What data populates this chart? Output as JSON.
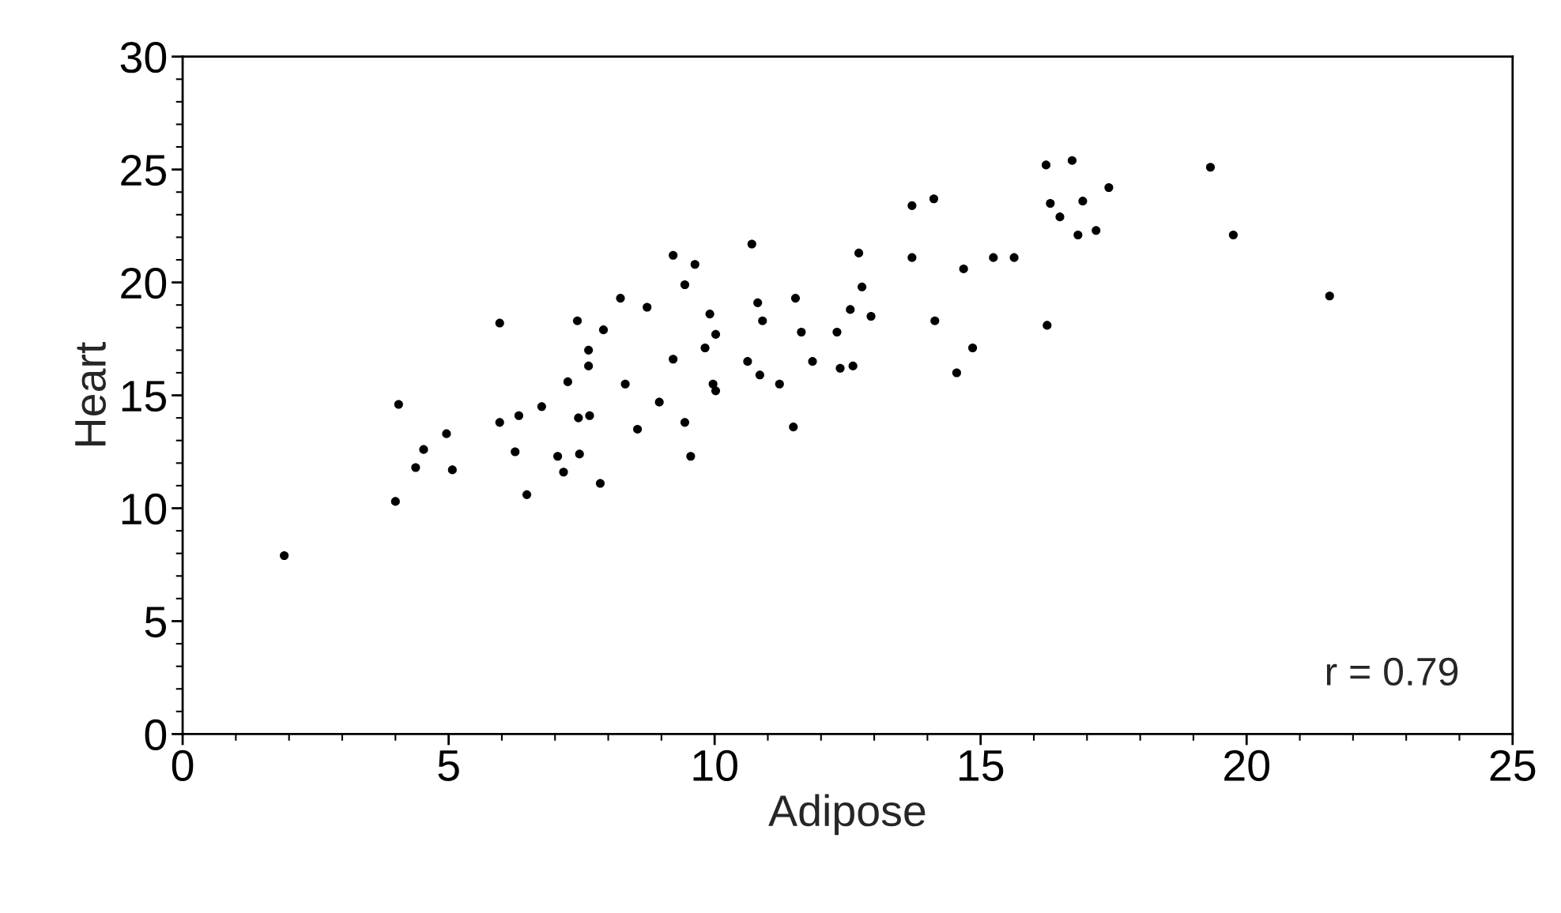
{
  "chart_data": {
    "type": "scatter",
    "xlabel": "Adipose",
    "ylabel": "Heart",
    "xlim": [
      0,
      25
    ],
    "xticks": [
      0,
      5,
      10,
      15,
      20,
      25
    ],
    "ylim": [
      0,
      30
    ],
    "yticks": [
      0,
      5,
      10,
      15,
      20,
      25,
      30
    ],
    "grid": false,
    "marker": "circle",
    "annotations": [
      "r = 0.79"
    ],
    "series": [
      {
        "color": "#000000",
        "x": [
          1.91,
          4.0,
          4.06,
          4.38,
          4.53,
          4.96,
          5.07,
          5.96,
          5.96,
          6.25,
          6.32,
          6.47,
          6.75,
          7.05,
          7.16,
          7.24,
          7.42,
          7.44,
          7.46,
          7.63,
          7.63,
          7.65,
          7.85,
          7.91,
          8.23,
          8.32,
          8.55,
          8.73,
          8.96,
          9.22,
          9.22,
          9.44,
          9.44,
          9.55,
          9.63,
          9.82,
          9.91,
          9.97,
          10.02,
          10.02,
          10.62,
          10.7,
          10.81,
          10.85,
          10.9,
          11.22,
          11.48,
          11.52,
          11.63,
          11.84,
          12.3,
          12.36,
          12.55,
          12.6,
          12.71,
          12.77,
          12.94,
          13.71,
          13.71,
          14.12,
          14.14,
          14.55,
          14.68,
          14.85,
          15.24,
          15.63,
          16.23,
          16.25,
          16.31,
          16.49,
          16.72,
          16.83,
          16.92,
          17.17,
          17.41,
          19.32,
          19.75,
          21.56
        ],
        "values": [
          7.9,
          10.3,
          14.6,
          11.8,
          12.6,
          13.3,
          11.7,
          18.2,
          13.8,
          12.5,
          14.1,
          10.6,
          14.5,
          12.3,
          11.6,
          15.6,
          18.3,
          14.0,
          12.4,
          17.0,
          16.3,
          14.1,
          11.1,
          17.9,
          19.3,
          15.5,
          13.5,
          18.9,
          14.7,
          21.2,
          16.6,
          19.9,
          13.8,
          12.3,
          20.8,
          17.1,
          18.6,
          15.5,
          17.7,
          15.2,
          16.5,
          21.7,
          19.1,
          15.9,
          18.3,
          15.5,
          13.6,
          19.3,
          17.8,
          16.5,
          17.8,
          16.2,
          18.8,
          16.3,
          21.3,
          19.8,
          18.5,
          23.4,
          21.1,
          23.7,
          18.3,
          16.0,
          20.6,
          17.1,
          21.1,
          21.1,
          25.2,
          18.1,
          23.5,
          22.9,
          25.4,
          22.1,
          23.6,
          22.3,
          24.2,
          25.1,
          22.1,
          19.4
        ]
      }
    ]
  }
}
